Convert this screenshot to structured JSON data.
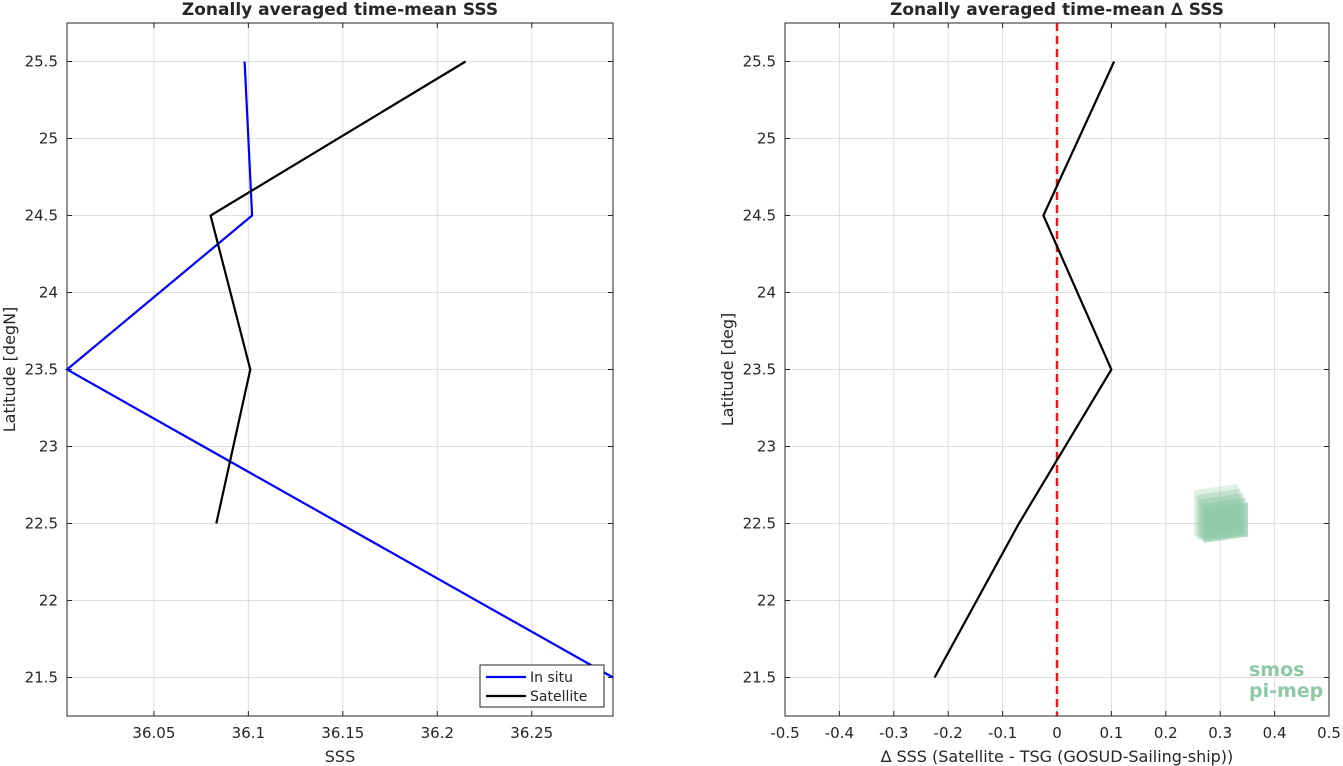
{
  "chart_data": [
    {
      "type": "line",
      "title": "Zonally averaged time-mean SSS",
      "xlabel": "SSS",
      "ylabel": "Latitude [degN]",
      "xlim": [
        36.004,
        36.293
      ],
      "ylim": [
        21.25,
        25.75
      ],
      "xticks": [
        36.05,
        36.1,
        36.15,
        36.2,
        36.25
      ],
      "xtick_labels": [
        "36.05",
        "36.1",
        "36.15",
        "36.2",
        "36.25"
      ],
      "yticks": [
        21.5,
        22,
        22.5,
        23,
        23.5,
        24,
        24.5,
        25,
        25.5
      ],
      "ytick_labels": [
        "21.5",
        "22",
        "22.5",
        "23",
        "23.5",
        "24",
        "24.5",
        "25",
        "25.5"
      ],
      "grid": true,
      "legend": "bottom-right",
      "series": [
        {
          "name": "In situ",
          "color": "#0000ff",
          "points": [
            [
              36.293,
              21.5
            ],
            [
              36.004,
              23.5
            ],
            [
              36.102,
              24.5
            ],
            [
              36.098,
              25.5
            ]
          ]
        },
        {
          "name": "Satellite",
          "color": "#000000",
          "points": [
            [
              36.083,
              22.5
            ],
            [
              36.101,
              23.5
            ],
            [
              36.08,
              24.5
            ],
            [
              36.215,
              25.5
            ]
          ]
        }
      ]
    },
    {
      "type": "line",
      "title": "Zonally averaged time-mean ∆ SSS",
      "xlabel": "∆ SSS (Satellite - TSG (GOSUD-Sailing-ship))",
      "ylabel": "Latitude [deg]",
      "xlim": [
        -0.5,
        0.5
      ],
      "ylim": [
        21.25,
        25.75
      ],
      "xticks": [
        -0.5,
        -0.4,
        -0.3,
        -0.2,
        -0.1,
        0,
        0.1,
        0.2,
        0.3,
        0.4,
        0.5
      ],
      "xtick_labels": [
        "-0.5",
        "-0.4",
        "-0.3",
        "-0.2",
        "-0.1",
        "0",
        "0.1",
        "0.2",
        "0.3",
        "0.4",
        "0.5"
      ],
      "yticks": [
        21.5,
        22,
        22.5,
        23,
        23.5,
        24,
        24.5,
        25,
        25.5
      ],
      "ytick_labels": [
        "21.5",
        "22",
        "22.5",
        "23",
        "23.5",
        "24",
        "24.5",
        "25",
        "25.5"
      ],
      "grid": true,
      "series": [
        {
          "color": "#000000",
          "points": [
            [
              -0.225,
              21.5
            ],
            [
              -0.07,
              22.5
            ],
            [
              0.1,
              23.5
            ],
            [
              -0.025,
              24.5
            ],
            [
              0.105,
              25.5
            ]
          ]
        }
      ],
      "reference_line": {
        "x": 0,
        "color": "#e41a1c",
        "style": "dashed"
      }
    }
  ],
  "logo": {
    "line1": "smos",
    "line2": "pi-mep",
    "color": "#8ec9a6"
  }
}
